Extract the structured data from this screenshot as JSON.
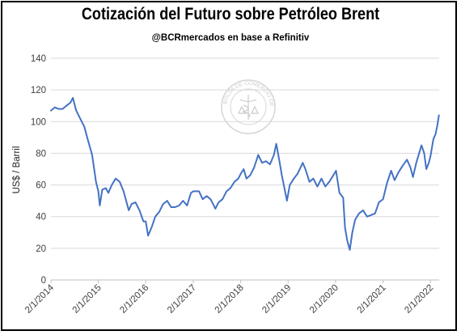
{
  "header": {
    "title": "Cotización del Futuro sobre Petróleo Brent",
    "subtitle": "@BCRmercados  en base a Refinitiv"
  },
  "watermark": {
    "text": "BOLSA DE COMERCIO DE ROSARIO",
    "icon": "caduceus-seal-icon"
  },
  "colors": {
    "line": "#4472C4",
    "grid": "#D9D9D9",
    "axis": "#BFBFBF"
  },
  "chart_data": {
    "type": "line",
    "title": "Cotización del Futuro sobre Petróleo Brent",
    "subtitle": "@BCRmercados  en base a Refinitiv",
    "xlabel": "",
    "ylabel": "US$ / Barril",
    "ylim": [
      0,
      140
    ],
    "yticks": [
      0,
      20,
      40,
      60,
      80,
      100,
      120,
      140
    ],
    "xlim": [
      "2014-01-02",
      "2022-03-10"
    ],
    "xticks": [
      "2014-01-02",
      "2015-01-02",
      "2016-01-02",
      "2017-01-02",
      "2018-01-02",
      "2019-01-02",
      "2020-01-02",
      "2021-01-02",
      "2022-01-02"
    ],
    "xtick_labels": [
      "2/1/2014",
      "2/1/2015",
      "2/1/2016",
      "2/1/2017",
      "2/1/2018",
      "2/1/2019",
      "2/1/2020",
      "2/1/2021",
      "2/1/2022"
    ],
    "grid": true,
    "legend": "none",
    "series": [
      {
        "x": [
          "2014-01-02",
          "2014-02-01",
          "2014-03-01",
          "2014-04-01",
          "2014-05-01",
          "2014-06-01",
          "2014-06-20",
          "2014-07-15",
          "2014-08-15",
          "2014-09-15",
          "2014-10-15",
          "2014-11-15",
          "2014-12-15",
          "2015-01-02",
          "2015-01-13",
          "2015-02-01",
          "2015-03-01",
          "2015-03-20",
          "2015-04-15",
          "2015-05-15",
          "2015-06-15",
          "2015-07-15",
          "2015-08-24",
          "2015-09-15",
          "2015-10-15",
          "2015-11-15",
          "2015-12-15",
          "2016-01-02",
          "2016-01-20",
          "2016-02-15",
          "2016-03-15",
          "2016-04-15",
          "2016-05-15",
          "2016-06-15",
          "2016-07-15",
          "2016-08-15",
          "2016-09-15",
          "2016-10-15",
          "2016-11-15",
          "2016-12-15",
          "2017-01-02",
          "2017-02-15",
          "2017-03-15",
          "2017-04-15",
          "2017-05-15",
          "2017-06-21",
          "2017-07-15",
          "2017-08-15",
          "2017-09-15",
          "2017-10-15",
          "2017-11-15",
          "2017-12-15",
          "2018-01-02",
          "2018-01-25",
          "2018-02-15",
          "2018-03-15",
          "2018-04-15",
          "2018-05-17",
          "2018-06-15",
          "2018-07-15",
          "2018-08-15",
          "2018-09-15",
          "2018-10-03",
          "2018-10-25",
          "2018-11-15",
          "2018-12-24",
          "2019-01-15",
          "2019-02-15",
          "2019-03-15",
          "2019-04-25",
          "2019-05-15",
          "2019-06-15",
          "2019-07-15",
          "2019-08-15",
          "2019-09-16",
          "2019-10-15",
          "2019-11-15",
          "2019-12-15",
          "2020-01-06",
          "2020-02-01",
          "2020-03-01",
          "2020-03-15",
          "2020-04-01",
          "2020-04-21",
          "2020-05-10",
          "2020-06-01",
          "2020-07-01",
          "2020-08-01",
          "2020-09-01",
          "2020-10-01",
          "2020-11-01",
          "2020-12-01",
          "2021-01-02",
          "2021-02-01",
          "2021-03-05",
          "2021-04-01",
          "2021-05-01",
          "2021-06-01",
          "2021-07-05",
          "2021-08-01",
          "2021-08-20",
          "2021-09-15",
          "2021-10-25",
          "2021-11-15",
          "2021-12-01",
          "2021-12-20",
          "2022-01-02",
          "2022-01-25",
          "2022-02-10",
          "2022-02-25",
          "2022-03-08"
        ],
        "y": [
          107,
          109,
          108,
          108,
          110,
          112,
          115,
          107,
          102,
          97,
          88,
          79,
          62,
          56,
          47,
          57,
          58,
          55,
          60,
          64,
          62,
          56,
          44,
          48,
          49,
          44,
          37,
          37,
          28,
          33,
          40,
          43,
          48,
          50,
          46,
          46,
          47,
          50,
          47,
          55,
          56,
          56,
          51,
          53,
          51,
          45,
          49,
          51,
          56,
          58,
          62,
          64,
          67,
          70,
          64,
          66,
          71,
          79,
          74,
          75,
          73,
          79,
          86,
          76,
          66,
          50,
          60,
          64,
          67,
          74,
          70,
          62,
          64,
          59,
          64,
          59,
          62,
          66,
          69,
          55,
          52,
          33,
          25,
          19,
          30,
          38,
          42,
          44,
          40,
          41,
          42,
          49,
          51,
          61,
          69,
          63,
          68,
          72,
          76,
          71,
          65,
          74,
          85,
          80,
          70,
          74,
          78,
          89,
          92,
          98,
          104
        ]
      }
    ]
  }
}
